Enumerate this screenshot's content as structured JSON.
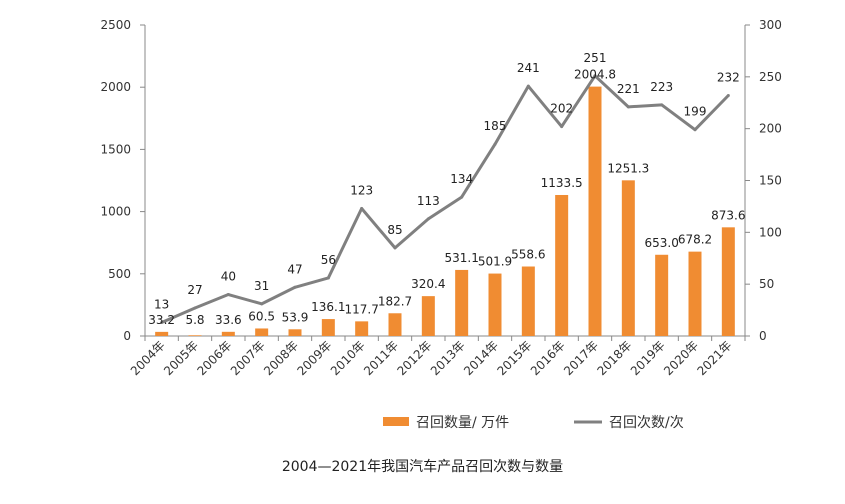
{
  "chart_data": {
    "type": "bar+line",
    "title": "2004—2021年我国汽车产品召回次数与数量",
    "categories": [
      "2004年",
      "2005年",
      "2006年",
      "2007年",
      "2008年",
      "2009年",
      "2010年",
      "2011年",
      "2012年",
      "2013年",
      "2014年",
      "2015年",
      "2016年",
      "2017年",
      "2018年",
      "2019年",
      "2020年",
      "2021年"
    ],
    "series": [
      {
        "name": "召回数量/ 万件",
        "type": "bar",
        "axis": "left",
        "color": "#F08C32",
        "values": [
          33.2,
          5.8,
          33.6,
          60.5,
          53.9,
          136.1,
          117.7,
          182.7,
          320.4,
          531.1,
          501.9,
          558.6,
          1133.5,
          2004.8,
          1251.3,
          653.0,
          678.2,
          873.6
        ],
        "labels": [
          "33.2",
          "5.8",
          "33.6",
          "60.5",
          "53.9",
          "136.1",
          "117.7",
          "182.7",
          "320.4",
          "531.1",
          "501.9",
          "558.6",
          "1133.5",
          "2004.8",
          "1251.3",
          "653.0",
          "678.2",
          "873.6"
        ]
      },
      {
        "name": "召回次数/次",
        "type": "line",
        "axis": "right",
        "color": "#808080",
        "values": [
          13,
          27,
          40,
          31,
          47,
          56,
          123,
          85,
          113,
          134,
          185,
          241,
          202,
          251,
          221,
          223,
          199,
          232
        ],
        "labels": [
          "13",
          "27",
          "40",
          "31",
          "47",
          "56",
          "123",
          "85",
          "113",
          "134",
          "185",
          "241",
          "202",
          "251",
          "221",
          "223",
          "199",
          "232"
        ]
      }
    ],
    "y_left": {
      "min": 0,
      "max": 2500,
      "ticks": [
        "0",
        "500",
        "1000",
        "1500",
        "2000",
        "2500"
      ]
    },
    "y_right": {
      "min": 0,
      "max": 300,
      "ticks": [
        "0",
        "50",
        "100",
        "150",
        "200",
        "250",
        "300"
      ]
    },
    "grid": false,
    "legend": "bottom"
  }
}
